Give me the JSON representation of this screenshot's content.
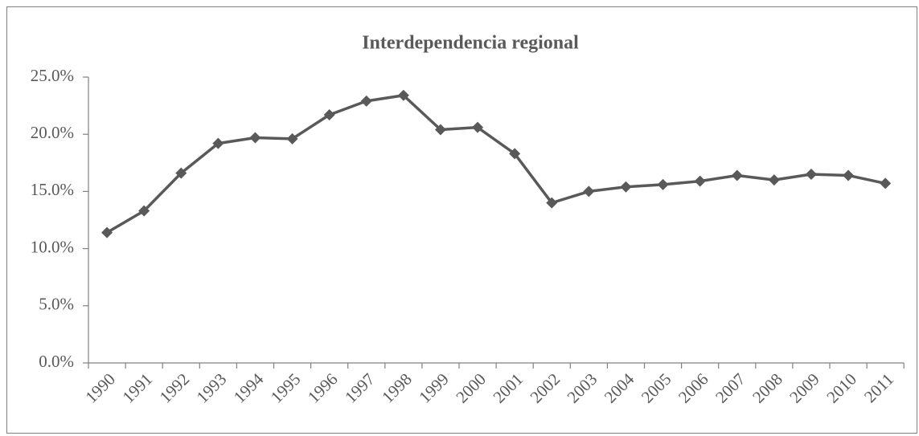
{
  "chart_data": {
    "type": "line",
    "title": "Interdependencia regional",
    "categories": [
      "1990",
      "1991",
      "1992",
      "1993",
      "1994",
      "1995",
      "1996",
      "1997",
      "1998",
      "1999",
      "2000",
      "2001",
      "2002",
      "2003",
      "2004",
      "2005",
      "2006",
      "2007",
      "2008",
      "2009",
      "2010",
      "2011"
    ],
    "series": [
      {
        "name": "Interdependencia regional",
        "color": "#595959",
        "values": [
          11.4,
          13.3,
          16.6,
          19.2,
          19.7,
          19.6,
          21.7,
          22.9,
          23.4,
          20.4,
          20.6,
          18.3,
          14.0,
          15.0,
          15.4,
          15.6,
          15.9,
          16.4,
          16.0,
          16.5,
          16.4,
          15.7
        ]
      }
    ],
    "ylim": [
      0,
      25
    ],
    "yticks": [
      {
        "value": 0,
        "label": "0.0%"
      },
      {
        "value": 5,
        "label": "5.0%"
      },
      {
        "value": 10,
        "label": "10.0%"
      },
      {
        "value": 15,
        "label": "15.0%"
      },
      {
        "value": 20,
        "label": "20.0%"
      },
      {
        "value": 25,
        "label": "25.0%"
      }
    ],
    "grid": false
  }
}
